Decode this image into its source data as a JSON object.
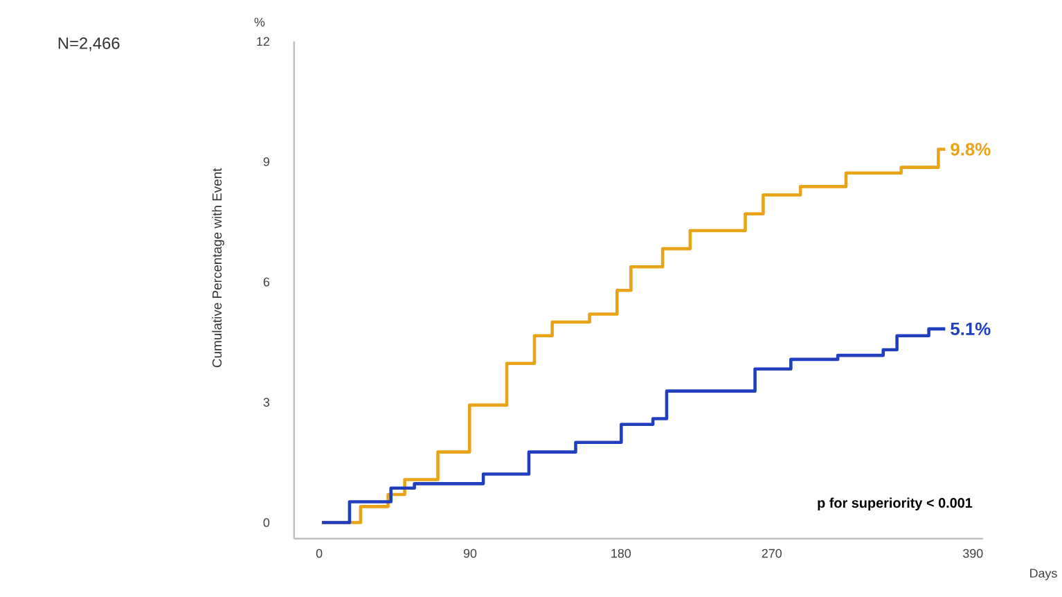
{
  "chart_data": {
    "type": "step",
    "xlabel": "Days",
    "ylabel": "Cumulative Percentage with Event",
    "annotations": [
      "N=2,466",
      "%",
      "p  for superiority < 0.001"
    ],
    "xlim": [
      -15,
      396
    ],
    "ylim": [
      -0.4,
      12
    ],
    "xticks": [
      0,
      90,
      180,
      270,
      390
    ],
    "yticks": [
      0,
      3,
      6,
      9,
      12
    ],
    "series": [
      {
        "name": "9.8%",
        "color": "#e8a317",
        "x": [
          1.6,
          24.7,
          41.1,
          51,
          70.8,
          89.7,
          111.9,
          128.4,
          139,
          161.3,
          177.7,
          186,
          204.9,
          221.3,
          254.2,
          264.9,
          287.1,
          314.3,
          347.2,
          369.4,
          373.5
        ],
        "values": [
          0,
          0.4,
          0.7,
          1.07,
          1.76,
          2.93,
          3.97,
          4.66,
          5.0,
          5.2,
          5.79,
          6.38,
          6.83,
          7.28,
          7.7,
          8.17,
          8.38,
          8.72,
          8.86,
          9.31,
          9.31
        ]
      },
      {
        "name": "5.1%",
        "color": "#1f3fbf",
        "x": [
          1.6,
          18.1,
          42.8,
          56.8,
          83.9,
          97.9,
          125.1,
          153,
          180.2,
          199.1,
          207.3,
          232,
          260,
          281.4,
          309.4,
          336.5,
          344.7,
          363.7,
          373.5
        ],
        "values": [
          0,
          0.52,
          0.86,
          0.97,
          0.97,
          1.21,
          1.76,
          2.0,
          2.45,
          2.59,
          3.28,
          3.28,
          3.83,
          4.07,
          4.17,
          4.31,
          4.66,
          4.83,
          4.83
        ]
      }
    ]
  }
}
